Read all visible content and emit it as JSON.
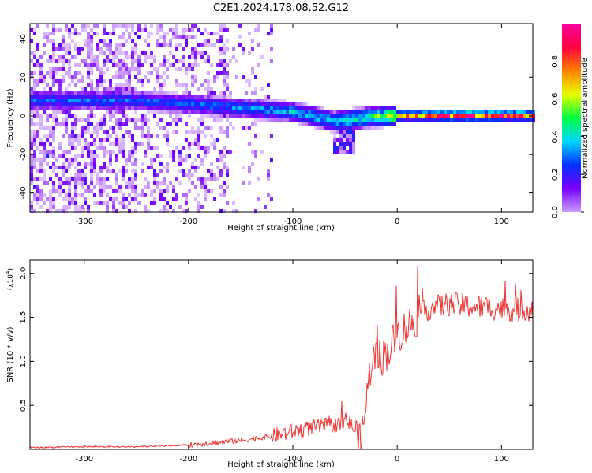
{
  "title": "C2E1.2024.178.08.52.G12",
  "chart_data": [
    {
      "type": "heatmap",
      "xlabel": "Height of straight line (km)",
      "ylabel": "Frequency (Hz)",
      "xlim": [
        -352,
        130
      ],
      "ylim": [
        -50,
        48
      ],
      "x_ticks": [
        -300,
        -200,
        -100,
        0,
        100
      ],
      "y_ticks": [
        -40,
        -20,
        0,
        20,
        40
      ],
      "colorbar": {
        "label": "Normalized spectral amplitude",
        "range": [
          0,
          1
        ],
        "ticks": [
          0.0,
          0.2,
          0.4,
          0.6,
          0.8
        ],
        "tick_labels": [
          "0.0",
          "0.2",
          "0.4",
          "0.6",
          "0.8"
        ],
        "colors": [
          "#c99cff",
          "#7a00ff",
          "#0030ff",
          "#00d8ff",
          "#00ff40",
          "#e8ff00",
          "#ff8000",
          "#ff0040",
          "#ff00a0"
        ]
      },
      "ridge": [
        {
          "x": -250,
          "freq": 8,
          "amp": 0.3
        },
        {
          "x": -200,
          "freq": 6,
          "amp": 0.3
        },
        {
          "x": -150,
          "freq": 4,
          "amp": 0.32
        },
        {
          "x": -100,
          "freq": 2,
          "amp": 0.38
        },
        {
          "x": -60,
          "freq": -3,
          "amp": 0.42
        },
        {
          "x": -30,
          "freq": -1,
          "amp": 0.5
        },
        {
          "x": 0,
          "freq": 0,
          "amp": 0.7
        },
        {
          "x": 50,
          "freq": 0,
          "amp": 0.95
        },
        {
          "x": 130,
          "freq": 0,
          "amp": 0.85
        }
      ]
    },
    {
      "type": "line",
      "xlabel": "Height of straight line (km)",
      "ylabel": "SNR (10 * v/v)",
      "y_multiplier": "(x10",
      "y_multiplier_exp": "4",
      "y_multiplier_close": ")",
      "xlim": [
        -352,
        130
      ],
      "ylim": [
        0,
        2.15
      ],
      "x_ticks": [
        -300,
        -200,
        -100,
        0,
        100
      ],
      "y_ticks": [
        0.5,
        1.0,
        1.5,
        2.0
      ],
      "y_tick_labels": [
        "0.5",
        "1.0",
        "1.5",
        "2.0"
      ],
      "series": [
        {
          "color": "#ee3333",
          "x": [
            -352,
            -300,
            -250,
            -200,
            -180,
            -150,
            -120,
            -100,
            -80,
            -60,
            -45,
            -40,
            -35,
            -30,
            -25,
            -20,
            -15,
            -10,
            0,
            10,
            20,
            30,
            50,
            75,
            100,
            115,
            130
          ],
          "y": [
            0.02,
            0.03,
            0.03,
            0.05,
            0.07,
            0.1,
            0.15,
            0.2,
            0.25,
            0.28,
            0.3,
            0.2,
            0.05,
            0.5,
            1.0,
            1.05,
            1.05,
            1.1,
            1.3,
            1.4,
            1.5,
            1.6,
            1.65,
            1.62,
            1.6,
            1.58,
            1.6
          ]
        }
      ]
    }
  ]
}
